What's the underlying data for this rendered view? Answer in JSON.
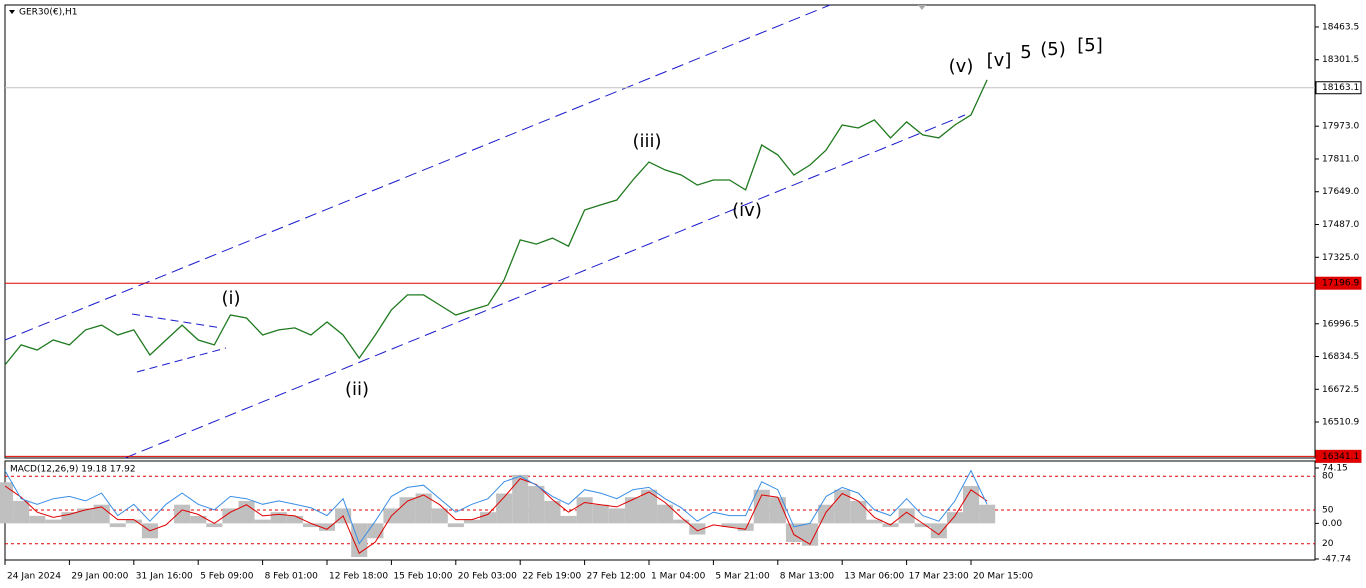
{
  "chart_data": [
    {
      "type": "line",
      "title": "GER30(€),H1",
      "color": "#1f7a1f",
      "categories": [
        "24 Jan 2024",
        null,
        null,
        null,
        "29 Jan 00:00",
        null,
        null,
        null,
        "31 Jan 16:00",
        null,
        null,
        null,
        "5 Feb 09:00",
        null,
        null,
        null,
        "8 Feb 01:00",
        null,
        null,
        null,
        "12 Feb 18:00",
        null,
        null,
        null,
        "15 Feb 10:00",
        null,
        null,
        null,
        "20 Feb 03:00",
        null,
        null,
        null,
        "22 Feb 19:00",
        null,
        null,
        null,
        "27 Feb 12:00",
        null,
        null,
        null,
        "1 Mar 04:00",
        null,
        null,
        null,
        "5 Mar 21:00",
        null,
        null,
        null,
        "8 Mar 13:00",
        null,
        null,
        null,
        "13 Mar 06:00",
        null,
        null,
        null,
        "17 Mar 23:00",
        null,
        null,
        null,
        "20 Mar 15:00",
        null
      ],
      "values": [
        16793,
        16892,
        16867,
        16916,
        16892,
        16966,
        16990,
        16941,
        16966,
        16842,
        16916,
        16990,
        16916,
        16892,
        17040,
        17025,
        16941,
        16966,
        16976,
        16941,
        17005,
        16941,
        16827,
        16941,
        17065,
        17139,
        17139,
        17089,
        17040,
        17065,
        17089,
        17213,
        17411,
        17390,
        17420,
        17380,
        17559,
        17584,
        17608,
        17707,
        17796,
        17757,
        17732,
        17682,
        17707,
        17707,
        17658,
        17880,
        17831,
        17732,
        17781,
        17855,
        17979,
        17964,
        18004,
        17915,
        17994,
        17930,
        17915,
        17979,
        18029,
        18202
      ],
      "ylim": [
        16333,
        18572
      ],
      "yticks": [
        18463.5,
        18301.5,
        {
          "value": 17973,
          "label": "17973.0"
        },
        {
          "value": 17811,
          "label": "17811.0"
        },
        {
          "value": 17649,
          "label": "17649.0"
        },
        {
          "value": 17487,
          "label": "17487.0"
        },
        {
          "value": 17325,
          "label": "17325.0"
        },
        16996.5,
        16834.5,
        16672.5,
        16510.9
      ],
      "hlines": [
        {
          "value": 18163.1,
          "color": "#c0c0c0"
        },
        {
          "value": 17196.9,
          "color": "#e00000"
        },
        {
          "value": 16341.1,
          "color": "#e00000"
        }
      ],
      "annotations": [
        {
          "text": "(i)",
          "color": "#1a1aff"
        },
        {
          "text": "(ii)",
          "color": "#1a1aff"
        },
        {
          "text": "(iii)",
          "color": "#1a1aff"
        },
        {
          "text": "(iv)",
          "color": "#1a1aff"
        },
        {
          "text": "(v)",
          "color": "#1a1aff"
        },
        {
          "text": "[v]",
          "color": "#1e8c1e"
        },
        {
          "text": "5",
          "color": "#1a1aff"
        },
        {
          "text": "(5)",
          "color": "#e00000"
        },
        {
          "text": "[5]",
          "color": "#000000"
        }
      ]
    },
    {
      "type": "macd",
      "title": "MACD(12,26,9) 19.18 17.92",
      "ylim": [
        -47.74,
        74.15
      ],
      "yticks": [
        74.15,
        {
          "value": 0,
          "label": "0.00"
        },
        -47.74
      ],
      "y2lim": [
        5.5,
        93.5
      ],
      "y2ticks": [
        80,
        50,
        20
      ],
      "level_color": "#e00000",
      "series": [
        {
          "type": "bar",
          "color": "#c0c0c0",
          "values": [
            55,
            30,
            10,
            5,
            15,
            20,
            25,
            -5,
            5,
            -20,
            0,
            25,
            10,
            -5,
            20,
            30,
            5,
            15,
            10,
            -5,
            -10,
            20,
            -45,
            -20,
            20,
            35,
            40,
            20,
            -5,
            5,
            15,
            40,
            65,
            50,
            30,
            10,
            35,
            25,
            20,
            35,
            45,
            25,
            5,
            -15,
            0,
            -5,
            -10,
            45,
            35,
            -25,
            -30,
            25,
            45,
            30,
            5,
            -5,
            20,
            -5,
            -20,
            15,
            50,
            25
          ]
        },
        {
          "type": "line",
          "color": "#e00000",
          "values": [
            50,
            35,
            15,
            8,
            12,
            18,
            22,
            5,
            5,
            -10,
            -2,
            18,
            12,
            0,
            15,
            25,
            10,
            12,
            10,
            0,
            -8,
            10,
            -40,
            -25,
            10,
            30,
            38,
            25,
            5,
            5,
            12,
            35,
            60,
            52,
            32,
            15,
            28,
            25,
            22,
            32,
            42,
            28,
            8,
            -10,
            -2,
            -5,
            -8,
            38,
            35,
            -15,
            -28,
            15,
            40,
            30,
            8,
            -2,
            15,
            0,
            -15,
            10,
            45,
            30
          ]
        },
        {
          "type": "line",
          "axis": "y2",
          "color": "#3a8ee6",
          "values": [
            85,
            60,
            55,
            60,
            62,
            58,
            65,
            45,
            55,
            40,
            55,
            65,
            55,
            50,
            62,
            60,
            55,
            58,
            55,
            52,
            45,
            60,
            20,
            40,
            62,
            70,
            72,
            60,
            48,
            55,
            60,
            75,
            80,
            72,
            62,
            55,
            68,
            65,
            60,
            68,
            70,
            60,
            52,
            40,
            48,
            45,
            45,
            75,
            68,
            35,
            38,
            62,
            70,
            65,
            50,
            45,
            60,
            45,
            40,
            58,
            85,
            55
          ]
        }
      ]
    }
  ]
}
